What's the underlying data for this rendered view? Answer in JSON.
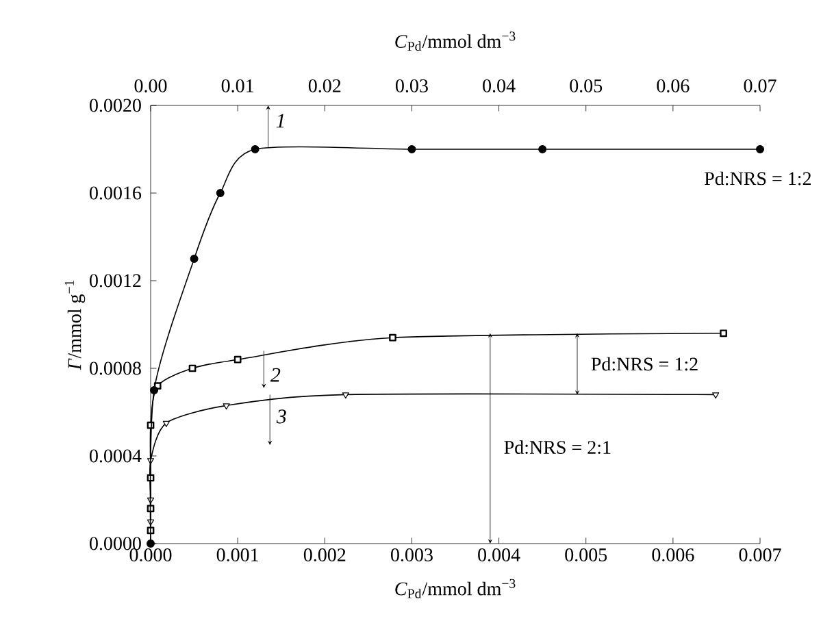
{
  "chart_data": {
    "type": "line",
    "xlabel": "*C*$_{Pd}$/mmol dm$^{−3}$",
    "x2label": "*C*$_{Pd}$/mmol dm$^{−3}$",
    "ylabel": "*Γ*/mmol g$^{−1}$",
    "xlim": [
      0,
      0.007
    ],
    "xticks": [
      {
        "value": 0,
        "label": "0.000"
      },
      {
        "value": 0.001,
        "label": "0.001"
      },
      {
        "value": 0.002,
        "label": "0.002"
      },
      {
        "value": 0.003,
        "label": "0.003"
      },
      {
        "value": 0.004,
        "label": "0.004"
      },
      {
        "value": 0.005,
        "label": "0.005"
      },
      {
        "value": 0.006,
        "label": "0.006"
      },
      {
        "value": 0.007,
        "label": "0.007"
      }
    ],
    "x2lim": [
      0,
      0.07
    ],
    "x2ticks": [
      {
        "value": 0,
        "label": "0.00"
      },
      {
        "value": 0.01,
        "label": "0.01"
      },
      {
        "value": 0.02,
        "label": "0.02"
      },
      {
        "value": 0.03,
        "label": "0.03"
      },
      {
        "value": 0.04,
        "label": "0.04"
      },
      {
        "value": 0.05,
        "label": "0.05"
      },
      {
        "value": 0.06,
        "label": "0.06"
      },
      {
        "value": 0.07,
        "label": "0.07"
      }
    ],
    "ylim": [
      0,
      0.002
    ],
    "yticks": [
      {
        "value": 0,
        "label": "0.0000"
      },
      {
        "value": 0.0004,
        "label": "0.0004"
      },
      {
        "value": 0.0008,
        "label": "0.0008"
      },
      {
        "value": 0.0012,
        "label": "0.0012"
      },
      {
        "value": 0.0016,
        "label": "0.0016"
      },
      {
        "value": 0.002,
        "label": "0.0020"
      }
    ],
    "grid": false,
    "legend": "top left",
    "series": [
      {
        "name": "*1*",
        "color": "#000000",
        "axis": "x2",
        "marker": "circle",
        "x": [
          0,
          0.0004,
          0.005,
          0.008,
          0.012,
          0.03,
          0.045,
          0.07
        ],
        "values": [
          0,
          0.0007,
          0.0013,
          0.0016,
          0.0018,
          0.0018,
          0.0018,
          0.0018
        ]
      },
      {
        "name": "*2*",
        "color": "#000000",
        "marker": "square",
        "x": [
          0,
          0,
          0,
          0,
          8e-05,
          0.00048,
          0.001,
          0.00278,
          0.00658
        ],
        "values": [
          6e-05,
          0.00016,
          0.0003,
          0.00054,
          0.00072,
          0.0008,
          0.00084,
          0.00094,
          0.00096
        ]
      },
      {
        "name": "*3*",
        "color": "#000000",
        "marker": "triangle",
        "x": [
          0,
          0,
          0,
          0.00018,
          0.00087,
          0.00224,
          0.00649
        ],
        "values": [
          0.0001,
          0.0002,
          0.00038,
          0.00055,
          0.00063,
          0.00068,
          0.00068
        ]
      }
    ],
    "annotations": [
      "Pd:NRS = 1:2",
      "Pd:NRS = 1:2",
      "Pd:NRS = 2:1"
    ]
  }
}
